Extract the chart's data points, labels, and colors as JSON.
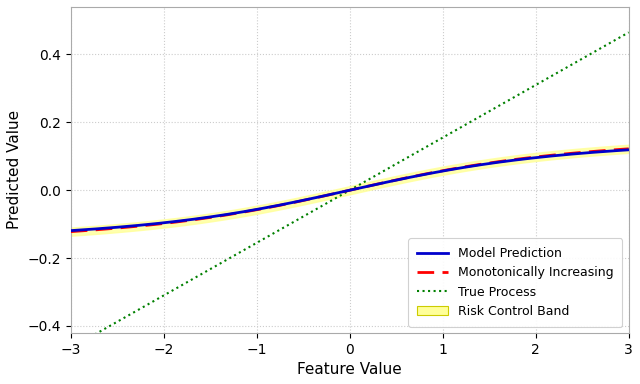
{
  "x_range": [
    -3,
    3
  ],
  "n_points": 500,
  "model_color": "#0000cc",
  "monotone_color": "#ff0000",
  "true_color": "#008000",
  "band_color": "#ffff99",
  "band_alpha": 0.8,
  "model_linewidth": 2.0,
  "monotone_linewidth": 2.0,
  "true_linewidth": 1.5,
  "xlabel": "Feature Value",
  "ylabel": "Predicted Value",
  "ylim": [
    -0.42,
    0.54
  ],
  "xlim": [
    -3.0,
    3.0
  ],
  "yticks": [
    -0.4,
    -0.2,
    0.0,
    0.2,
    0.4
  ],
  "xticks": [
    -3,
    -2,
    -1,
    0,
    1,
    2,
    3
  ],
  "legend_loc": "lower right",
  "grid_color": "#cccccc",
  "grid_style": "dotted",
  "bg_color": "#ffffff",
  "band_halfwidth": 0.012,
  "true_slope": 0.155,
  "model_a": 0.105,
  "model_b": 0.5,
  "model_c": 0.008
}
